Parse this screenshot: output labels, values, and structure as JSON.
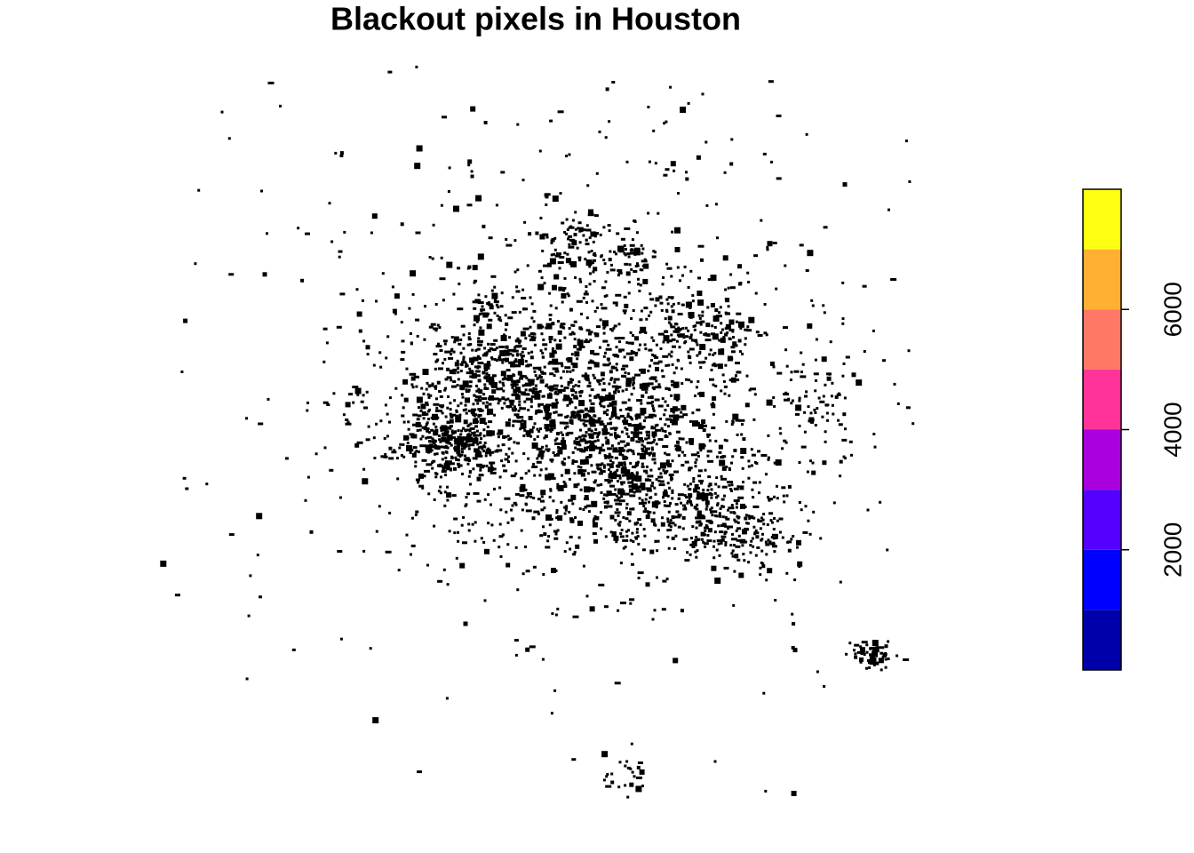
{
  "chart_data": {
    "type": "raster",
    "title": "Blackout pixels in Houston",
    "legend": {
      "lim": [
        0,
        8000
      ],
      "ticks": [
        2000,
        4000,
        6000
      ],
      "breaks": [
        0,
        1000,
        2000,
        3000,
        4000,
        5000,
        6000,
        7000,
        8000
      ],
      "colors": [
        "#0000aa",
        "#0000ff",
        "#5500ff",
        "#aa00dd",
        "#ff3399",
        "#ff7766",
        "#ffb033",
        "#ffff11"
      ]
    },
    "pixel_color": "#000000"
  }
}
